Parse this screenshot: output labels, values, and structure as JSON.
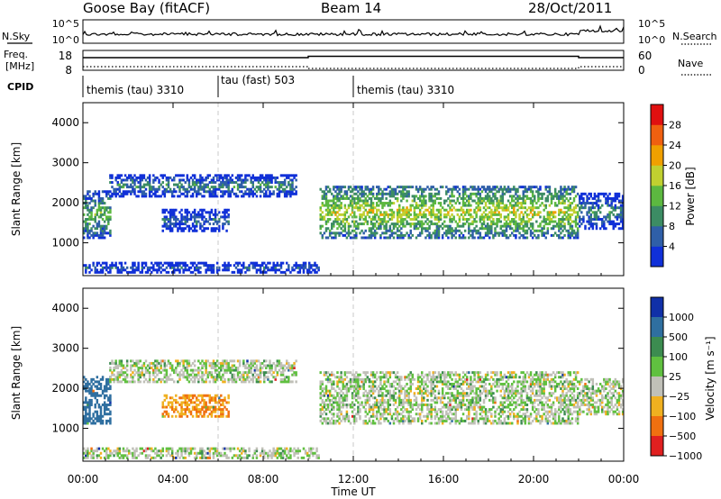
{
  "header": {
    "station": "Goose Bay (fitACF)",
    "beam": "Beam 14",
    "date": "28/Oct/2011"
  },
  "noise_panel": {
    "left_label": "N.Sky",
    "left_ticks": [
      "10^5",
      "10^0"
    ],
    "right_label": "N.Search",
    "right_ticks": [
      "10^5",
      "10^0"
    ]
  },
  "freq_panel": {
    "left_label_1": "Freq.",
    "left_label_2": "[MHz]",
    "left_ticks": [
      "18",
      "8"
    ],
    "right_label": "Nave",
    "right_ticks": [
      "60",
      "0"
    ]
  },
  "cpid_panel": {
    "label": "CPID",
    "segments": [
      {
        "label": "themis (tau) 3310",
        "start_hour": 0
      },
      {
        "label": "tau (fast) 503",
        "start_hour": 6
      },
      {
        "label": "themis (tau) 3310",
        "start_hour": 12
      }
    ]
  },
  "time_axis": {
    "label": "Time UT",
    "ticks": [
      "00:00",
      "04:00",
      "08:00",
      "12:00",
      "16:00",
      "20:00",
      "00:00"
    ]
  },
  "power_panel": {
    "ylabel": "Slant Range [km]",
    "yticks": [
      "1000",
      "2000",
      "3000",
      "4000"
    ],
    "colorbar_label": "Power [dB]",
    "colorbar_ticks": [
      "4",
      "8",
      "12",
      "16",
      "20",
      "24",
      "28"
    ],
    "colors": [
      "#1030d8",
      "#2f5fa8",
      "#3c8c64",
      "#5cb840",
      "#c0d030",
      "#f0a000",
      "#f06010",
      "#e01010"
    ]
  },
  "velocity_panel": {
    "ylabel": "Slant Range [km]",
    "yticks": [
      "1000",
      "2000",
      "3000",
      "4000"
    ],
    "colorbar_label": "Velocity [m s⁻¹]",
    "colorbar_ticks": [
      "1000",
      "500",
      "100",
      "25",
      "−25",
      "−100",
      "−500",
      "−1000"
    ],
    "colors": [
      "#1030a8",
      "#2f6fa0",
      "#3c8c50",
      "#60c040",
      "#c0c0b8",
      "#f0b020",
      "#f07010",
      "#e02020"
    ]
  },
  "chart_data": {
    "type": "heatmap",
    "x_range_hours": [
      0,
      24
    ],
    "range_ylim_km": [
      180,
      4500
    ],
    "gates": 75,
    "time_bins": 288,
    "regions": [
      {
        "t0": 0.0,
        "t1": 1.2,
        "r0": 1050,
        "r1": 2300,
        "power": 16,
        "velocity": 200
      },
      {
        "t0": 1.2,
        "t1": 9.5,
        "r0": 2100,
        "r1": 2700,
        "power": 12,
        "velocity": 0
      },
      {
        "t0": 3.5,
        "t1": 6.5,
        "r0": 1250,
        "r1": 1800,
        "power": 10,
        "velocity": -100
      },
      {
        "t0": 0.0,
        "t1": 10.5,
        "r0": 220,
        "r1": 500,
        "power": 8,
        "velocity": 0
      },
      {
        "t0": 10.5,
        "t1": 22.0,
        "r0": 1100,
        "r1": 2400,
        "power": 20,
        "velocity": 0
      },
      {
        "t0": 22.0,
        "t1": 24.0,
        "r0": 1300,
        "r1": 2200,
        "power": 12,
        "velocity": 0
      }
    ]
  }
}
